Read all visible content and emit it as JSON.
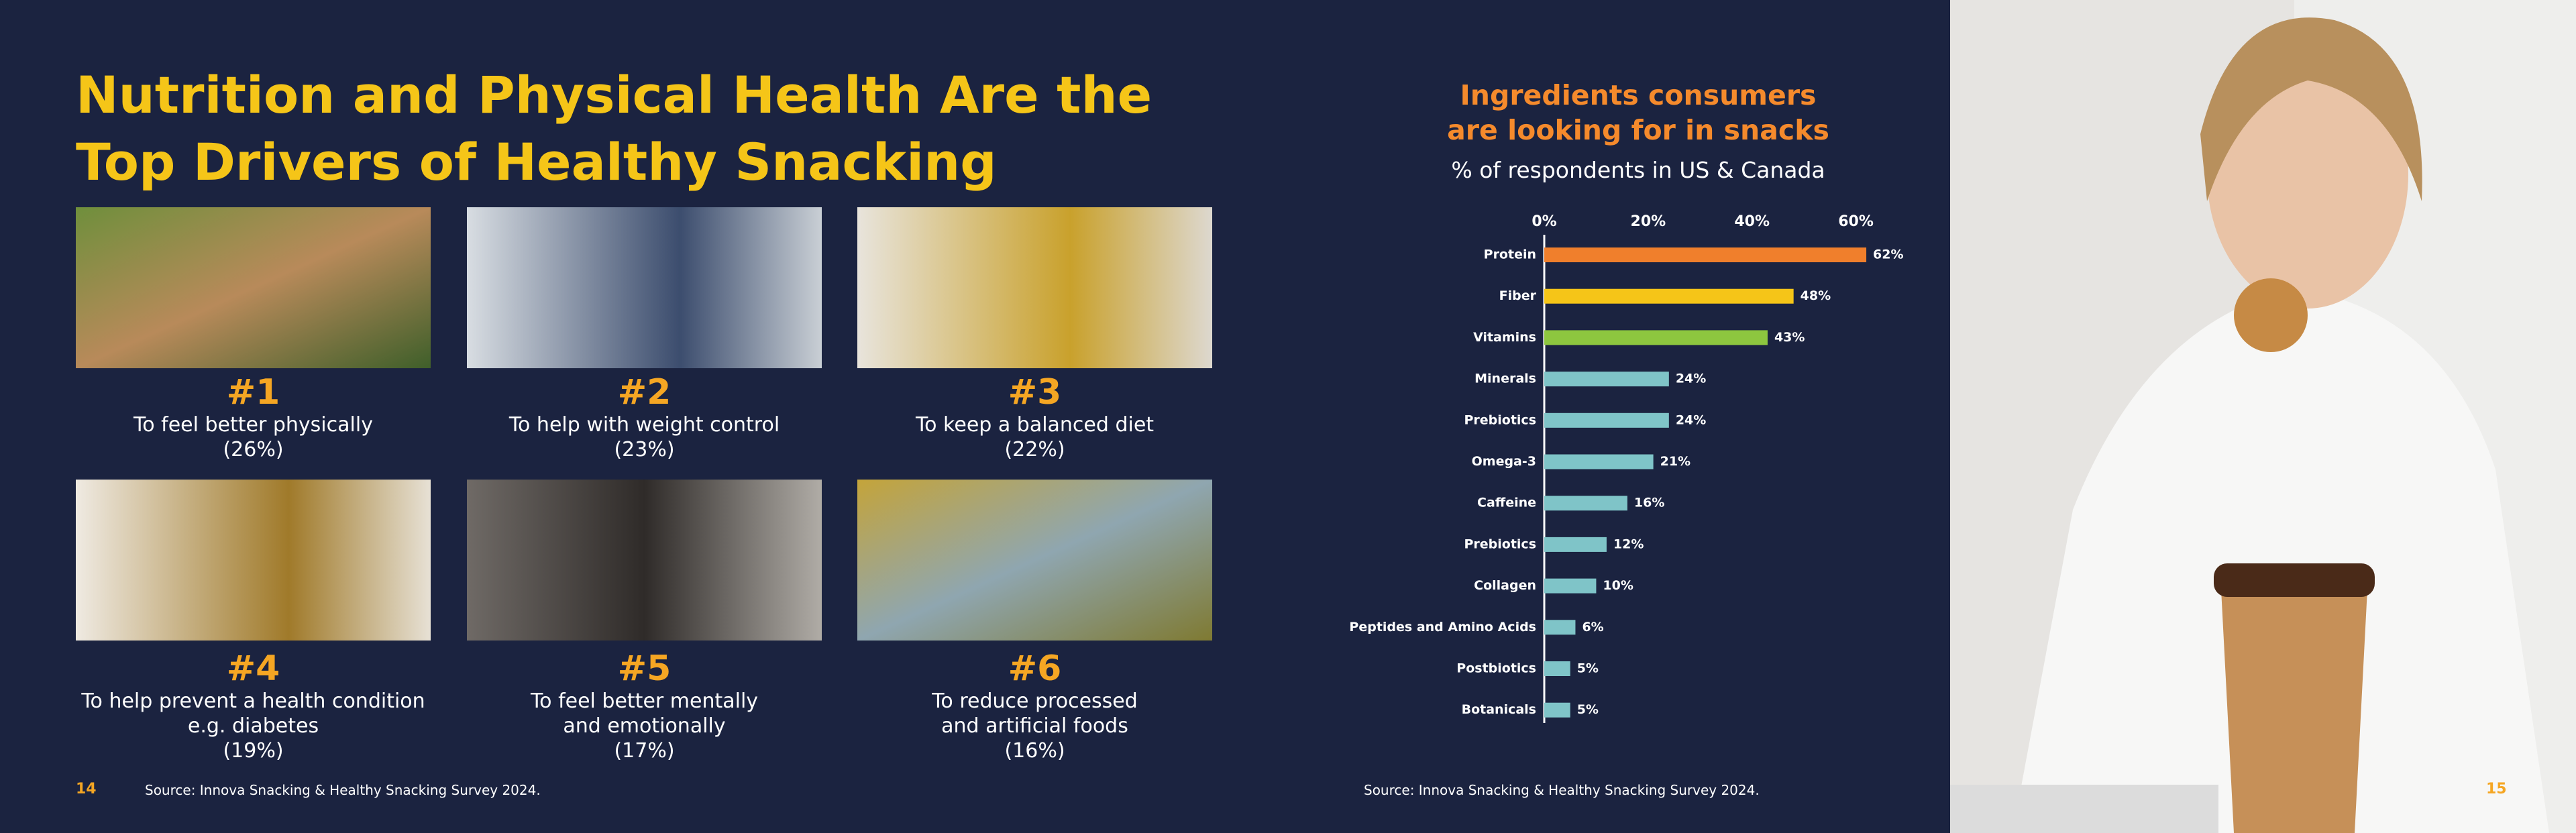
{
  "page": {
    "title": "Nutrition and Physical Health Are the Top Drivers of Healthy Snacking",
    "drivers": [
      {
        "rank": "#1",
        "lines": [
          "To feel better physically",
          "(26%)"
        ]
      },
      {
        "rank": "#2",
        "lines": [
          "To help with weight control",
          "(23%)"
        ]
      },
      {
        "rank": "#3",
        "lines": [
          "To keep a balanced diet",
          "(22%)"
        ]
      },
      {
        "rank": "#4",
        "lines": [
          "To help prevent a health condition",
          "e.g. diabetes",
          "(19%)"
        ]
      },
      {
        "rank": "#5",
        "lines": [
          "To feel better mentally",
          "and emotionally",
          "(17%)"
        ]
      },
      {
        "rank": "#6",
        "lines": [
          "To reduce processed",
          "and artificial foods",
          "(16%)"
        ]
      }
    ],
    "left_page_number": "14",
    "left_source": "Source: Innova Snacking & Healthy Snacking Survey 2024.",
    "right_source": "Source: Innova Snacking & Healthy Snacking Survey 2024.",
    "right_page_number": "15"
  },
  "chart_data": {
    "type": "bar",
    "orientation": "horizontal",
    "title": "Ingredients consumers are looking for in snacks",
    "subtitle": "% of respondents in US & Canada",
    "categories": [
      "Protein",
      "Fiber",
      "Vitamins",
      "Minerals",
      "Prebiotics",
      "Omega-3",
      "Caffeine",
      "Prebiotics",
      "Collagen",
      "Peptides and Amino Acids",
      "Postbiotics",
      "Botanicals"
    ],
    "values": [
      62,
      48,
      43,
      24,
      24,
      21,
      16,
      12,
      10,
      6,
      5,
      5
    ],
    "value_labels": [
      "62%",
      "48%",
      "43%",
      "24%",
      "24%",
      "21%",
      "16%",
      "12%",
      "10%",
      "6%",
      "5%",
      "5%"
    ],
    "colors": [
      "#f07f2c",
      "#f5c518",
      "#8dc63f",
      "#7fc4c8",
      "#7fc4c8",
      "#7fc4c8",
      "#7fc4c8",
      "#7fc4c8",
      "#7fc4c8",
      "#7fc4c8",
      "#7fc4c8",
      "#7fc4c8"
    ],
    "xlim": [
      0,
      70
    ],
    "xticks": [
      {
        "value": 0,
        "label": "0%"
      },
      {
        "value": 20,
        "label": "20%"
      },
      {
        "value": 40,
        "label": "40%"
      },
      {
        "value": 60,
        "label": "60%"
      }
    ],
    "grid": false
  }
}
